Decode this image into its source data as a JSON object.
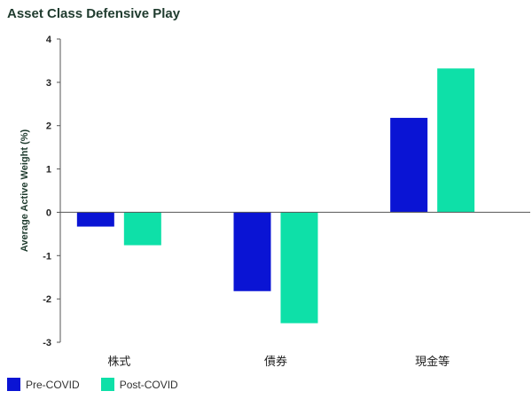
{
  "chart_data": {
    "type": "bar",
    "title": "Asset Class Defensive Play",
    "ylabel": "Average Active Weight (%)",
    "xlabel": "",
    "categories": [
      "株式",
      "債券",
      "現金等"
    ],
    "ylim": [
      -3,
      4
    ],
    "yticks": [
      4,
      3,
      2,
      1,
      0,
      -1,
      -2,
      -3
    ],
    "grid": false,
    "legend_position": "bottom-left",
    "series": [
      {
        "name": "Pre-COVID",
        "color": "#0a14d4",
        "values": [
          -0.33,
          -1.82,
          2.18
        ]
      },
      {
        "name": "Post-COVID",
        "color": "#0ee0a8",
        "values": [
          -0.76,
          -2.56,
          3.32
        ]
      }
    ]
  }
}
